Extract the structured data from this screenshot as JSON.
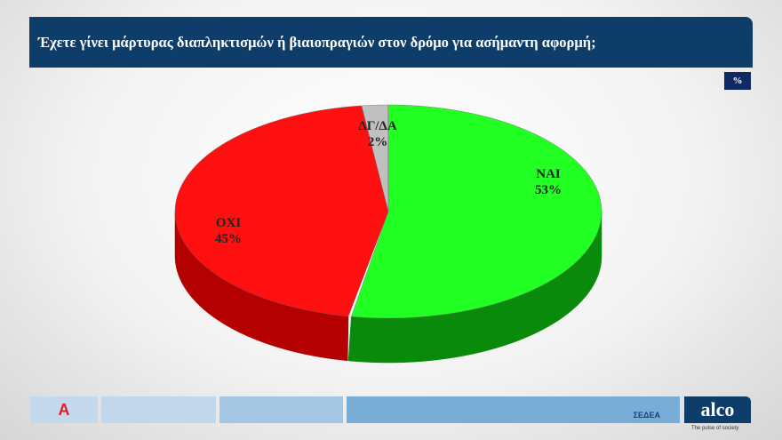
{
  "header": {
    "title": "Έχετε γίνει μάρτυρας διαπληκτισμών ή βιαιοπραγιών στον δρόμο για ασήμαντη αφορμή;",
    "unit_badge": "%"
  },
  "chart_data": {
    "type": "pie",
    "style": "3d",
    "title": "Έχετε γίνει μάρτυρας διαπληκτισμών ή βιαιοπραγιών στον δρόμο για ασήμαντη αφορμή;",
    "slices": [
      {
        "label": "ΝΑΙ",
        "value": 53,
        "value_label": "53%",
        "color": "#22ff22",
        "side_color": "#0a8a0a"
      },
      {
        "label": "ΟΧΙ",
        "value": 45,
        "value_label": "45%",
        "color": "#ff1010",
        "side_color": "#b40000"
      },
      {
        "label": "ΔΓ/ΔΑ",
        "value": 2,
        "value_label": "2%",
        "color": "#c0c0c0",
        "side_color": "#888888"
      }
    ]
  },
  "footer": {
    "sedea_logo": "ΣΕΔΕΑ",
    "alco_logo": "alco",
    "alco_tagline": "The pulse of society",
    "alpha_logo": "Α"
  }
}
